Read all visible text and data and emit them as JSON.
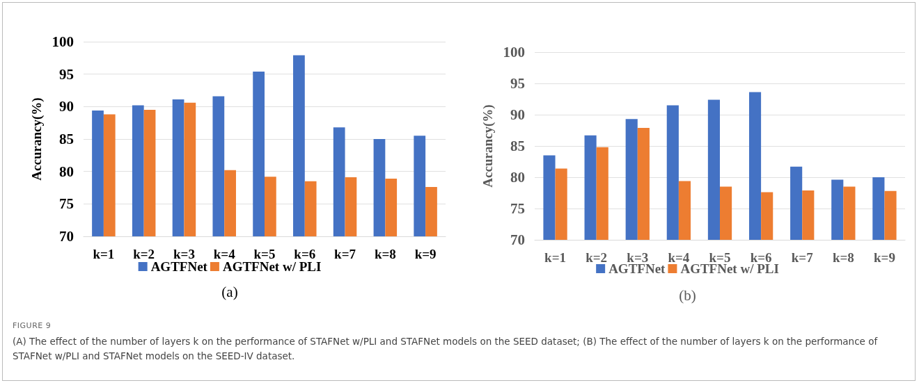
{
  "chart_data": [
    {
      "type": "bar",
      "xlabel": "(a)",
      "ylabel": "Accurancy(%)",
      "categories": [
        "k=1",
        "k=2",
        "k=3",
        "k=4",
        "k=5",
        "k=6",
        "k=7",
        "k=8",
        "k=9"
      ],
      "series": [
        {
          "name": "AGTFNet",
          "color": "#4472c4",
          "values": [
            89.4,
            90.2,
            91.1,
            91.6,
            95.4,
            97.9,
            86.8,
            85.0,
            85.5
          ]
        },
        {
          "name": "AGTFNet w/ PLI",
          "color": "#ed7d31",
          "values": [
            88.8,
            89.5,
            90.6,
            80.2,
            79.2,
            78.5,
            79.1,
            78.9,
            77.6
          ]
        }
      ],
      "ylim": [
        70,
        100
      ],
      "yticks": [
        70,
        75,
        80,
        85,
        90,
        95,
        100
      ],
      "grid": "y",
      "legend": "bottom",
      "annotations": [
        "FIGURE 9",
        "(A) The effect of the number of layers k on the performance of STAFNet w/PLI and STAFNet models on the SEED dataset; (B) The effect of the number of layers k on the performance of STAFNet w/PLI and STAFNet models on the SEED-IV dataset."
      ]
    },
    {
      "type": "bar",
      "xlabel": "(b)",
      "ylabel": "Accurancy(%)",
      "categories": [
        "k=1",
        "k=2",
        "k=3",
        "k=4",
        "k=5",
        "k=6",
        "k=7",
        "k=8",
        "k=9"
      ],
      "series": [
        {
          "name": "AGTFNet",
          "color": "#4472c4",
          "values": [
            83.5,
            86.7,
            89.3,
            91.5,
            92.4,
            93.6,
            81.7,
            79.6,
            80.0
          ]
        },
        {
          "name": "AGTFNet w/ PLI",
          "color": "#ed7d31",
          "values": [
            81.4,
            84.8,
            87.9,
            79.4,
            78.5,
            77.6,
            77.9,
            78.5,
            77.8
          ]
        }
      ],
      "ylim": [
        70,
        100
      ],
      "yticks": [
        70,
        75,
        80,
        85,
        90,
        95,
        100
      ],
      "grid": "y",
      "legend": "bottom"
    }
  ]
}
